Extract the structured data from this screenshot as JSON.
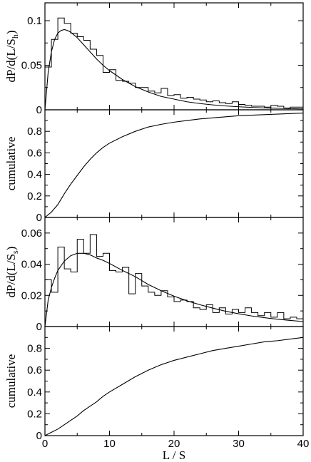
{
  "chart_data": [
    {
      "type": "line",
      "panel": "histogram",
      "ylabel": "dP/d(L/S",
      "ylabel_sub": "h",
      "ylabel_tail": ")",
      "xlim": [
        0,
        40
      ],
      "ylim": [
        0,
        0.12
      ],
      "yticks": [
        0,
        0.05,
        0.1
      ],
      "ytick_labels": [
        "0",
        "0.05",
        "0.1"
      ],
      "bin_width": 1,
      "histogram": [
        0.048,
        0.079,
        0.103,
        0.097,
        0.086,
        0.082,
        0.078,
        0.068,
        0.061,
        0.042,
        0.045,
        0.033,
        0.032,
        0.03,
        0.025,
        0.025,
        0.021,
        0.019,
        0.024,
        0.016,
        0.017,
        0.013,
        0.014,
        0.012,
        0.011,
        0.009,
        0.01,
        0.008,
        0.007,
        0.009,
        0.006,
        0.005,
        0.004,
        0.004,
        0.003,
        0.005,
        0.004,
        0.002,
        0.003,
        0.003
      ],
      "fit": {
        "x": [
          0,
          0.5,
          1,
          1.5,
          2,
          2.5,
          3,
          3.5,
          4,
          5,
          6,
          7,
          8,
          9,
          10,
          12,
          14,
          16,
          18,
          20,
          22,
          24,
          26,
          28,
          30,
          32,
          34,
          36,
          38,
          40
        ],
        "y": [
          0,
          0.042,
          0.065,
          0.079,
          0.086,
          0.089,
          0.09,
          0.089,
          0.087,
          0.081,
          0.073,
          0.065,
          0.057,
          0.05,
          0.044,
          0.034,
          0.026,
          0.02,
          0.015,
          0.012,
          0.009,
          0.007,
          0.0055,
          0.0043,
          0.0034,
          0.0027,
          0.0021,
          0.0017,
          0.0013,
          0.001
        ]
      }
    },
    {
      "type": "line",
      "panel": "cumulative",
      "ylabel": "cumulative",
      "xlim": [
        0,
        40
      ],
      "ylim": [
        0,
        1
      ],
      "yticks": [
        0,
        0.2,
        0.4,
        0.6,
        0.8
      ],
      "ytick_labels": [
        "0",
        "0.2",
        "0.4",
        "0.6",
        "0.8"
      ],
      "x": [
        0,
        1,
        2,
        3,
        4,
        5,
        6,
        7,
        8,
        9,
        10,
        12,
        14,
        16,
        18,
        20,
        22,
        24,
        26,
        28,
        30,
        32,
        34,
        36,
        38,
        40
      ],
      "y": [
        0,
        0.05,
        0.12,
        0.22,
        0.31,
        0.39,
        0.47,
        0.54,
        0.6,
        0.65,
        0.69,
        0.75,
        0.8,
        0.84,
        0.865,
        0.885,
        0.9,
        0.915,
        0.925,
        0.935,
        0.945,
        0.95,
        0.955,
        0.96,
        0.965,
        0.97
      ]
    },
    {
      "type": "line",
      "panel": "histogram",
      "ylabel": "dP/d(L/S",
      "ylabel_sub": "s",
      "ylabel_tail": ")",
      "xlim": [
        0,
        40
      ],
      "ylim": [
        0,
        0.07
      ],
      "yticks": [
        0,
        0.02,
        0.04,
        0.06
      ],
      "ytick_labels": [
        "0",
        "0.02",
        "0.04",
        "0.06"
      ],
      "bin_width": 1,
      "histogram": [
        0.03,
        0.022,
        0.051,
        0.037,
        0.035,
        0.056,
        0.047,
        0.059,
        0.045,
        0.047,
        0.036,
        0.035,
        0.038,
        0.021,
        0.034,
        0.026,
        0.022,
        0.02,
        0.023,
        0.019,
        0.016,
        0.017,
        0.016,
        0.012,
        0.011,
        0.014,
        0.009,
        0.012,
        0.008,
        0.011,
        0.009,
        0.012,
        0.009,
        0.007,
        0.009,
        0.006,
        0.009,
        0.005,
        0.006,
        0.005
      ],
      "fit": {
        "x": [
          0,
          0.5,
          1,
          1.5,
          2,
          3,
          4,
          5,
          6,
          7,
          8,
          9,
          10,
          12,
          14,
          16,
          18,
          20,
          22,
          24,
          26,
          28,
          30,
          32,
          34,
          36,
          38,
          40
        ],
        "y": [
          0,
          0.017,
          0.025,
          0.031,
          0.036,
          0.042,
          0.0455,
          0.047,
          0.047,
          0.046,
          0.044,
          0.0425,
          0.0405,
          0.036,
          0.032,
          0.027,
          0.023,
          0.0195,
          0.0165,
          0.014,
          0.0118,
          0.0098,
          0.0082,
          0.0068,
          0.0057,
          0.0047,
          0.0039,
          0.0032
        ]
      }
    },
    {
      "type": "line",
      "panel": "cumulative",
      "ylabel": "cumulative",
      "xlabel": "L / S",
      "xlim": [
        0,
        40
      ],
      "xticks": [
        0,
        10,
        20,
        30,
        40
      ],
      "xtick_labels": [
        "0",
        "10",
        "20",
        "30",
        "40"
      ],
      "ylim": [
        0,
        1
      ],
      "yticks": [
        0,
        0.2,
        0.4,
        0.6,
        0.8
      ],
      "ytick_labels": [
        "0",
        "0.2",
        "0.4",
        "0.6",
        "0.8"
      ],
      "x": [
        0,
        1,
        2,
        3,
        4,
        5,
        6,
        7,
        8,
        9,
        10,
        12,
        14,
        16,
        18,
        20,
        22,
        24,
        26,
        28,
        30,
        32,
        34,
        36,
        38,
        40
      ],
      "y": [
        0,
        0.03,
        0.06,
        0.1,
        0.14,
        0.18,
        0.23,
        0.27,
        0.31,
        0.36,
        0.4,
        0.47,
        0.54,
        0.6,
        0.65,
        0.69,
        0.72,
        0.75,
        0.78,
        0.8,
        0.82,
        0.84,
        0.86,
        0.87,
        0.885,
        0.9
      ]
    }
  ]
}
